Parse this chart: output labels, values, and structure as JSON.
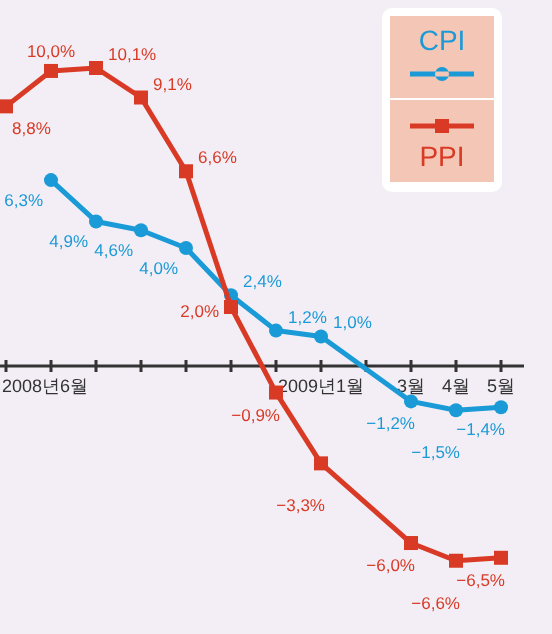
{
  "chart_data": {
    "type": "line",
    "legend": "top right",
    "categories": [
      "2008년6월",
      null,
      null,
      null,
      null,
      null,
      null,
      "2009년1월",
      null,
      "3월",
      "4월",
      "5월"
    ],
    "series": [
      {
        "name": "CPI",
        "color": "#1a9ad6",
        "marker": "circle",
        "values": [
          null,
          6.3,
          4.9,
          4.6,
          4.0,
          2.4,
          1.2,
          1.0,
          null,
          -1.2,
          -1.5,
          -1.4
        ],
        "value_labels": [
          null,
          "6,3%",
          "4,9%",
          "4,6%",
          "4,0%",
          "2,4%",
          "1,2%",
          "1,0%",
          null,
          "−1,2%",
          "−1,5%",
          "−1,4%"
        ]
      },
      {
        "name": "PPI",
        "color": "#d93a26",
        "marker": "square",
        "values": [
          8.8,
          10.0,
          10.1,
          9.1,
          6.6,
          2.0,
          -0.9,
          -3.3,
          null,
          -6.0,
          -6.6,
          -6.5
        ],
        "value_labels": [
          "8,8%",
          "10,0%",
          "10,1%",
          "9,1%",
          "6,6%",
          "2,0%",
          "−0,9%",
          "−3,3%",
          null,
          "−6,0%",
          "−6,6%",
          "−6,5%"
        ]
      }
    ]
  }
}
